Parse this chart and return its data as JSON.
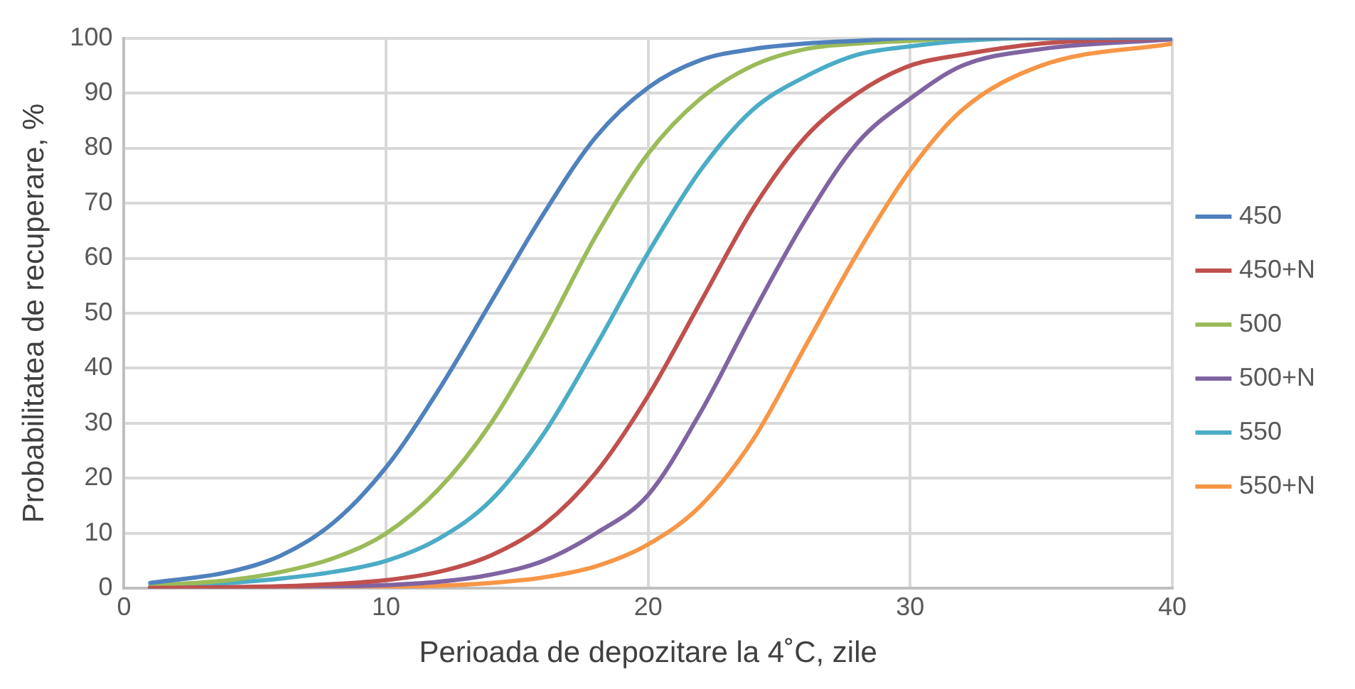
{
  "chart_data": {
    "type": "line",
    "xlabel": "Perioada de depozitare la 4˚C, zile",
    "ylabel": "Probabilitatea de recuperare, %",
    "x": [
      1,
      4,
      6,
      8,
      10,
      12,
      14,
      16,
      18,
      20,
      22,
      24,
      26,
      28,
      30,
      32,
      35,
      40
    ],
    "series": [
      {
        "name": "450",
        "color": "#4f81bd",
        "values": [
          1,
          3,
          6,
          12,
          22,
          36,
          52,
          68,
          82,
          91,
          96,
          98,
          99,
          99.5,
          100,
          100,
          100,
          100
        ]
      },
      {
        "name": "450+N",
        "color": "#c0504d",
        "values": [
          0.1,
          0.2,
          0.4,
          0.8,
          1.5,
          3,
          6,
          11.5,
          21,
          35,
          52,
          69,
          82,
          90,
          95,
          97,
          99,
          100
        ]
      },
      {
        "name": "500",
        "color": "#9bbb59",
        "values": [
          0.5,
          1.5,
          3,
          5.5,
          10,
          18,
          30,
          46,
          64,
          79,
          89,
          95,
          98,
          99,
          99.5,
          100,
          100,
          100
        ]
      },
      {
        "name": "500+N",
        "color": "#8064a2",
        "values": [
          0.1,
          0.2,
          0.3,
          0.4,
          0.6,
          1.2,
          2.5,
          5,
          10,
          17,
          32,
          50,
          67,
          81,
          89,
          95,
          98,
          99.8
        ]
      },
      {
        "name": "550",
        "color": "#4bacc6",
        "values": [
          0.3,
          1,
          1.8,
          3,
          5,
          9,
          16,
          28,
          44,
          61,
          76,
          87,
          93,
          97,
          98.5,
          99.5,
          100,
          100
        ]
      },
      {
        "name": "550+N",
        "color": "#f79646",
        "values": [
          0,
          0.1,
          0.1,
          0.2,
          0.3,
          0.5,
          1,
          2,
          4,
          8,
          15,
          27,
          44,
          61,
          76,
          87,
          95,
          99
        ]
      }
    ],
    "xlim": [
      0,
      40
    ],
    "xticks": [
      0,
      10,
      20,
      30,
      40
    ],
    "ylim": [
      0,
      100
    ],
    "yticks": [
      0,
      10,
      20,
      30,
      40,
      50,
      60,
      70,
      80,
      90,
      100
    ],
    "grid": true,
    "legend": "right",
    "marker": "none",
    "line_style": "solid"
  }
}
